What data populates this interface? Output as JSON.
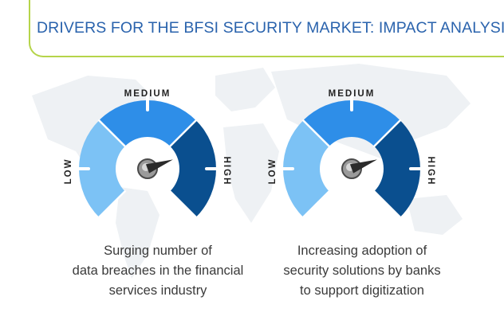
{
  "title": "DRIVERS FOR THE BFSI SECURITY MARKET: IMPACT ANALYSIS",
  "colors": {
    "accent_line": "#b5d44a",
    "title": "#2a63ad",
    "low": "#7cc2f5",
    "medium": "#2e8ee8",
    "high": "#0a4f8f"
  },
  "scale_labels": {
    "low": "LOW",
    "medium": "MEDIUM",
    "high": "HIGH"
  },
  "drivers": [
    {
      "impact": "HIGH",
      "caption_lines": [
        "Surging number of",
        "data breaches in the financial",
        "services industry"
      ]
    },
    {
      "impact": "HIGH",
      "caption_lines": [
        "Increasing adoption of",
        "security solutions by banks",
        "to support digitization"
      ]
    }
  ]
}
